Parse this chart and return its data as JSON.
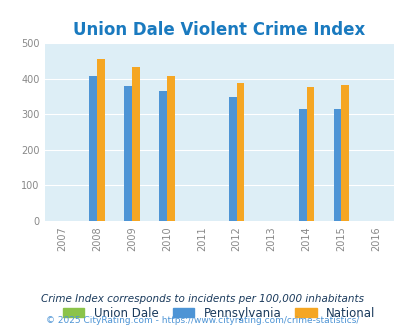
{
  "title": "Union Dale Violent Crime Index",
  "title_color": "#1a7abf",
  "background_color": "#ddeef6",
  "plot_bg_color": "#ddeef6",
  "fig_bg_color": "#ffffff",
  "years": [
    2007,
    2008,
    2009,
    2010,
    2011,
    2012,
    2013,
    2014,
    2015,
    2016
  ],
  "data_years": [
    2008,
    2009,
    2010,
    2012,
    2014,
    2015
  ],
  "union_dale": [
    0,
    0,
    0,
    0,
    0,
    0
  ],
  "pennsylvania": [
    408,
    380,
    365,
    348,
    315,
    315
  ],
  "national": [
    455,
    433,
    406,
    388,
    377,
    383
  ],
  "union_dale_color": "#8bc34a",
  "pennsylvania_color": "#4d94d5",
  "national_color": "#f5a623",
  "ylim": [
    0,
    500
  ],
  "yticks": [
    0,
    100,
    200,
    300,
    400,
    500
  ],
  "bar_width": 0.22,
  "legend_labels": [
    "Union Dale",
    "Pennsylvania",
    "National"
  ],
  "footnote1": "Crime Index corresponds to incidents per 100,000 inhabitants",
  "footnote2": "© 2025 CityRating.com - https://www.cityrating.com/crime-statistics/",
  "footnote1_color": "#1a3a5c",
  "footnote2_color": "#4d94d5",
  "title_fontsize": 12,
  "tick_fontsize": 7,
  "legend_fontsize": 8.5,
  "footnote1_fontsize": 7.5,
  "footnote2_fontsize": 6.5
}
